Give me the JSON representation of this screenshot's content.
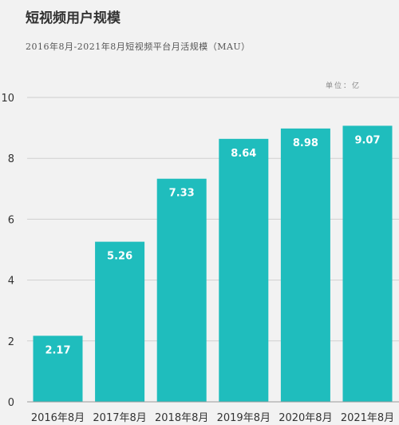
{
  "title": "短视频用户规模",
  "subtitle": "2016年8月-2021年8月短视频平台月活规模（MAU）",
  "unit_label": "单位：亿",
  "colors": {
    "bar": "#1fbdbd",
    "bar_label": "#ffffff",
    "axis": "#333333",
    "gridline": "#cfcfcf"
  },
  "chart_data": {
    "type": "bar",
    "categories": [
      "2016年8月",
      "2017年8月",
      "2018年8月",
      "2019年8月",
      "2020年8月",
      "2021年8月"
    ],
    "values": [
      2.17,
      5.26,
      7.33,
      8.64,
      8.98,
      9.07
    ],
    "value_labels": [
      "2.17",
      "5.26",
      "7.33",
      "8.64",
      "8.98",
      "9.07"
    ],
    "title": "短视频用户规模",
    "xlabel": "",
    "ylabel": "",
    "ylim": [
      0,
      10
    ],
    "yticks": [
      0,
      2,
      4,
      6,
      8,
      10
    ],
    "grid": true,
    "legend": "none"
  }
}
